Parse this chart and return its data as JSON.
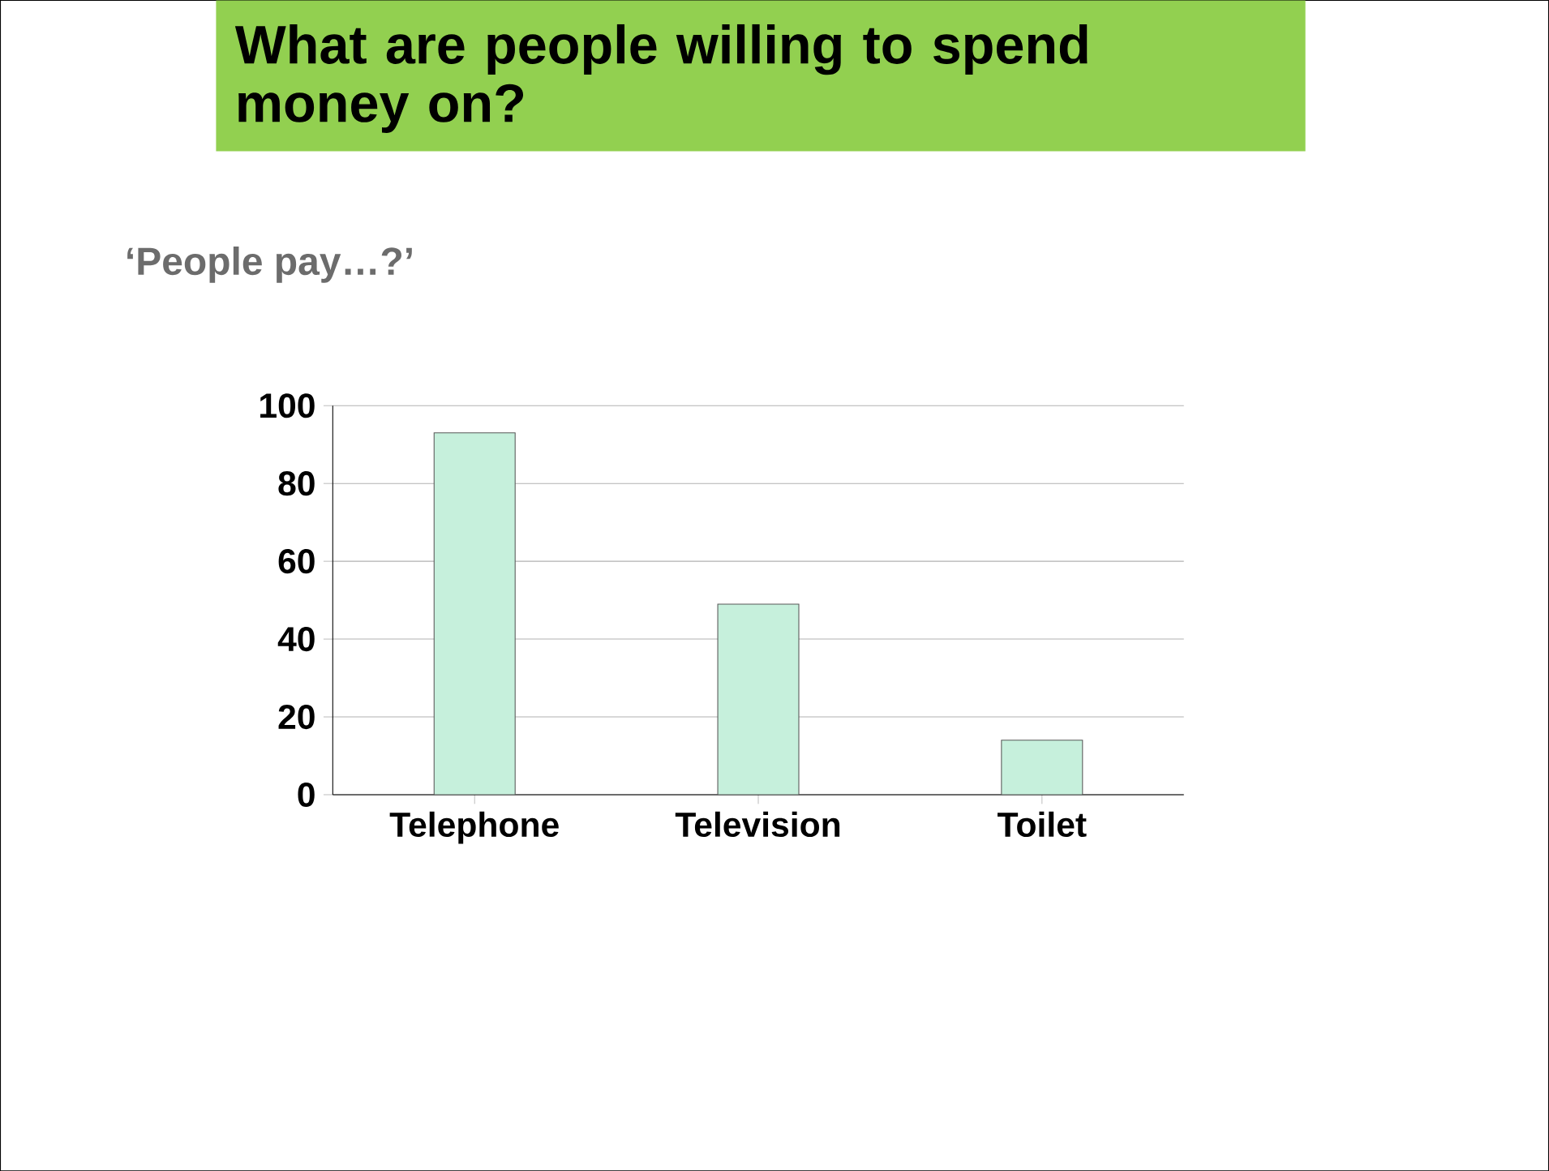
{
  "chart_data": {
    "type": "bar",
    "title": "What are people willing to spend money on?",
    "subtitle": "‘People pay…?’",
    "categories": [
      "Telephone",
      "Television",
      "Toilet"
    ],
    "values": [
      93,
      49,
      14
    ],
    "color": "#c6f0dc",
    "ylim": [
      0,
      100
    ],
    "yticks": [
      0,
      20,
      40,
      60,
      80,
      100
    ],
    "grid": "y"
  }
}
